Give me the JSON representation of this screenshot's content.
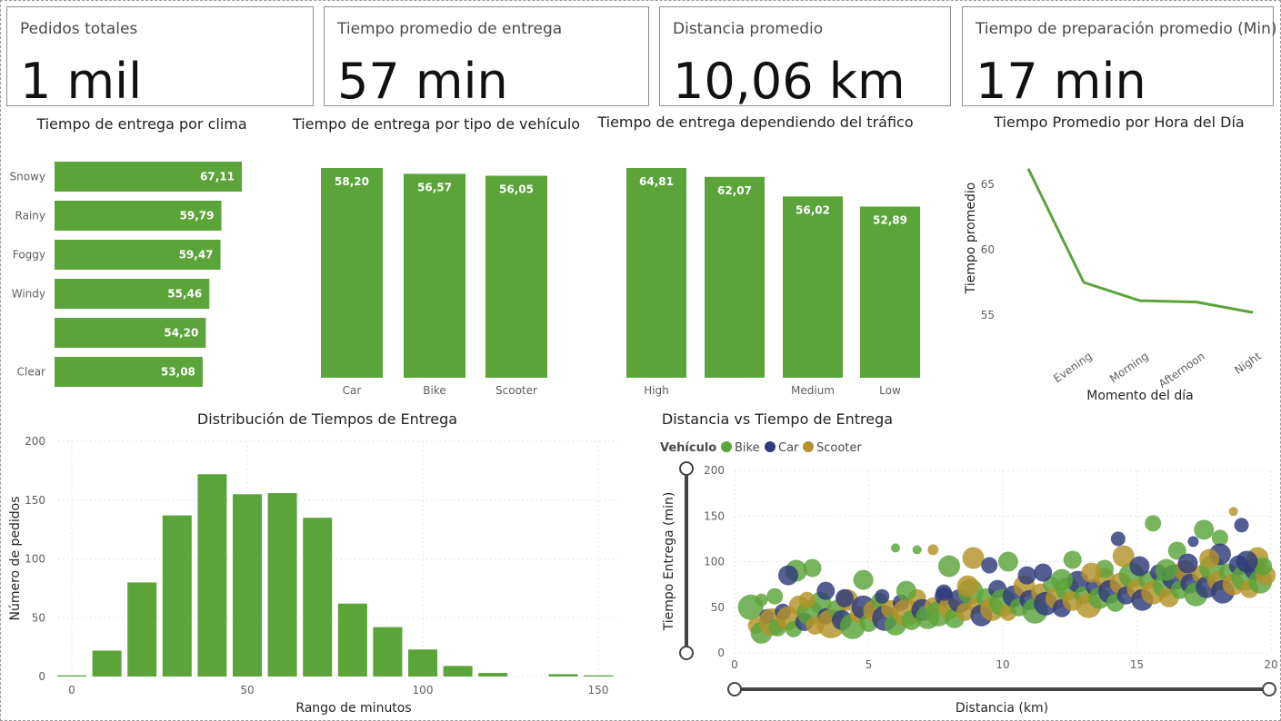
{
  "kpis": [
    {
      "label": "Pedidos totales",
      "value": "1 mil"
    },
    {
      "label": "Tiempo promedio de entrega",
      "value": "57 min"
    },
    {
      "label": "Distancia promedio",
      "value": "10,06 km"
    },
    {
      "label": "Tiempo de preparación promedio (Min)",
      "value": "17 min"
    }
  ],
  "colors": {
    "green": "#5aa43a",
    "navy": "#2e3a7a",
    "gold": "#b3922a",
    "grid": "#e6e6e6",
    "text": "#252423",
    "axis": "#605e5c"
  },
  "chart_data": [
    {
      "id": "weather",
      "type": "bar",
      "orientation": "horizontal",
      "title": "Tiempo de entrega por clima",
      "categories": [
        "Snowy",
        "Rainy",
        "Foggy",
        "Windy",
        "",
        "Clear"
      ],
      "values": [
        67.11,
        59.79,
        59.47,
        55.46,
        54.2,
        53.08
      ],
      "value_labels": [
        "67,11",
        "59,79",
        "59,47",
        "55,46",
        "54,20",
        "53,08"
      ]
    },
    {
      "id": "vehicle",
      "type": "bar",
      "title": "Tiempo de entrega por tipo de vehículo",
      "categories": [
        "Car",
        "Bike",
        "Scooter"
      ],
      "values": [
        58.2,
        56.57,
        56.05
      ],
      "value_labels": [
        "58,20",
        "56,57",
        "56,05"
      ]
    },
    {
      "id": "traffic",
      "type": "bar",
      "title": "Tiempo de entrega dependiendo del tráfico",
      "categories": [
        "High",
        "",
        "Medium",
        "Low"
      ],
      "values": [
        64.81,
        62.07,
        56.02,
        52.89
      ],
      "value_labels": [
        "64,81",
        "62,07",
        "56,02",
        "52,89"
      ]
    },
    {
      "id": "hour",
      "type": "line",
      "title": "Tiempo Promedio por Hora del Día",
      "xlabel": "Momento del día",
      "ylabel": "Tiempo promedio",
      "categories": [
        "",
        "Evening",
        "Morning",
        "Afternoon",
        "Night"
      ],
      "values": [
        66.2,
        57.5,
        56.1,
        56.0,
        55.2
      ],
      "yticks": [
        55,
        60,
        65
      ],
      "ylim": [
        53.5,
        66.5
      ]
    },
    {
      "id": "hist",
      "type": "bar",
      "title": "Distribución de Tiempos de Entrega",
      "xlabel": "Rango de minutos",
      "ylabel": "Número de pedidos",
      "bin_starts": [
        0,
        10,
        20,
        30,
        40,
        50,
        60,
        70,
        80,
        90,
        100,
        110,
        120,
        130,
        140,
        150
      ],
      "values": [
        1,
        22,
        80,
        137,
        172,
        155,
        156,
        135,
        62,
        42,
        23,
        9,
        3,
        0,
        2,
        1
      ],
      "xticks": [
        0,
        50,
        100,
        150
      ],
      "yticks": [
        0,
        50,
        100,
        150,
        200
      ],
      "ylim": [
        0,
        200
      ],
      "grid": true
    },
    {
      "id": "scatter",
      "type": "scatter",
      "title": "Distancia vs Tiempo de Entrega",
      "xlabel": "Distancia (km)",
      "ylabel": "Tiempo Entrega (min)",
      "legend_title": "Vehículo",
      "series": [
        {
          "name": "Bike",
          "color": "#5aa43a"
        },
        {
          "name": "Car",
          "color": "#2e3a7a"
        },
        {
          "name": "Scooter",
          "color": "#b3922a"
        }
      ],
      "points": [
        [
          0.6,
          50,
          0,
          14
        ],
        [
          0.8,
          30,
          2,
          9
        ],
        [
          1.0,
          22,
          0,
          12
        ],
        [
          1.2,
          40,
          1,
          8
        ],
        [
          1.4,
          34,
          2,
          15
        ],
        [
          1.6,
          28,
          0,
          10
        ],
        [
          1.8,
          45,
          1,
          9
        ],
        [
          2.0,
          38,
          2,
          13
        ],
        [
          2.2,
          26,
          0,
          9
        ],
        [
          2.4,
          52,
          2,
          11
        ],
        [
          2.6,
          34,
          1,
          10
        ],
        [
          2.8,
          44,
          0,
          14
        ],
        [
          3.0,
          30,
          2,
          10
        ],
        [
          3.2,
          55,
          0,
          12
        ],
        [
          3.4,
          40,
          1,
          9
        ],
        [
          3.6,
          32,
          2,
          16
        ],
        [
          3.8,
          48,
          0,
          10
        ],
        [
          4.0,
          36,
          1,
          11
        ],
        [
          4.2,
          58,
          2,
          12
        ],
        [
          4.4,
          29,
          0,
          14
        ],
        [
          4.6,
          42,
          2,
          9
        ],
        [
          4.8,
          50,
          1,
          13
        ],
        [
          5.0,
          33,
          0,
          10
        ],
        [
          5.2,
          46,
          2,
          12
        ],
        [
          5.4,
          57,
          0,
          9
        ],
        [
          5.6,
          38,
          1,
          14
        ],
        [
          5.8,
          48,
          2,
          10
        ],
        [
          6.0,
          31,
          0,
          12
        ],
        [
          6.2,
          55,
          1,
          9
        ],
        [
          6.4,
          44,
          2,
          15
        ],
        [
          6.6,
          36,
          0,
          11
        ],
        [
          6.8,
          60,
          2,
          10
        ],
        [
          7.0,
          47,
          1,
          12
        ],
        [
          7.2,
          39,
          0,
          13
        ],
        [
          7.4,
          52,
          2,
          9
        ],
        [
          7.6,
          43,
          0,
          14
        ],
        [
          7.8,
          62,
          1,
          10
        ],
        [
          8.0,
          49,
          2,
          12
        ],
        [
          8.2,
          38,
          0,
          11
        ],
        [
          8.4,
          57,
          1,
          13
        ],
        [
          8.6,
          45,
          2,
          10
        ],
        [
          8.8,
          67,
          0,
          14
        ],
        [
          9.0,
          52,
          2,
          9
        ],
        [
          9.2,
          41,
          1,
          12
        ],
        [
          9.4,
          60,
          0,
          11
        ],
        [
          9.6,
          48,
          2,
          13
        ],
        [
          9.8,
          70,
          1,
          10
        ],
        [
          10.0,
          55,
          0,
          15
        ],
        [
          10.2,
          44,
          2,
          9
        ],
        [
          10.4,
          62,
          1,
          12
        ],
        [
          10.6,
          50,
          0,
          10
        ],
        [
          10.8,
          73,
          2,
          12
        ],
        [
          11.0,
          58,
          1,
          11
        ],
        [
          11.2,
          46,
          0,
          14
        ],
        [
          11.4,
          66,
          2,
          10
        ],
        [
          11.6,
          54,
          1,
          13
        ],
        [
          11.8,
          75,
          0,
          9
        ],
        [
          12.0,
          60,
          2,
          12
        ],
        [
          12.2,
          49,
          1,
          10
        ],
        [
          12.4,
          70,
          0,
          13
        ],
        [
          12.6,
          57,
          2,
          11
        ],
        [
          12.8,
          78,
          1,
          12
        ],
        [
          13.0,
          63,
          0,
          10
        ],
        [
          13.2,
          52,
          2,
          14
        ],
        [
          13.4,
          72,
          1,
          9
        ],
        [
          13.6,
          60,
          0,
          12
        ],
        [
          13.8,
          82,
          2,
          11
        ],
        [
          14.0,
          67,
          1,
          13
        ],
        [
          14.2,
          55,
          0,
          10
        ],
        [
          14.4,
          76,
          2,
          12
        ],
        [
          14.6,
          63,
          1,
          10
        ],
        [
          14.8,
          85,
          0,
          14
        ],
        [
          15.0,
          70,
          2,
          11
        ],
        [
          15.2,
          58,
          1,
          12
        ],
        [
          15.4,
          80,
          0,
          10
        ],
        [
          15.6,
          66,
          2,
          13
        ],
        [
          15.8,
          88,
          1,
          9
        ],
        [
          16.0,
          73,
          0,
          12
        ],
        [
          16.2,
          61,
          2,
          11
        ],
        [
          16.4,
          83,
          1,
          14
        ],
        [
          16.6,
          69,
          0,
          10
        ],
        [
          16.8,
          90,
          2,
          12
        ],
        [
          17.0,
          76,
          1,
          11
        ],
        [
          17.2,
          64,
          0,
          13
        ],
        [
          17.4,
          86,
          2,
          10
        ],
        [
          17.6,
          72,
          1,
          12
        ],
        [
          17.8,
          93,
          0,
          14
        ],
        [
          18.0,
          79,
          2,
          11
        ],
        [
          18.2,
          67,
          1,
          13
        ],
        [
          18.4,
          88,
          0,
          10
        ],
        [
          18.6,
          75,
          2,
          12
        ],
        [
          18.8,
          96,
          1,
          11
        ],
        [
          19.0,
          82,
          0,
          14
        ],
        [
          19.2,
          70,
          2,
          10
        ],
        [
          19.4,
          92,
          1,
          12
        ],
        [
          19.6,
          78,
          0,
          13
        ],
        [
          19.8,
          85,
          2,
          11
        ],
        [
          1.5,
          62,
          0,
          9
        ],
        [
          2.3,
          90,
          0,
          12
        ],
        [
          2.9,
          93,
          0,
          10
        ],
        [
          2.0,
          85,
          1,
          11
        ],
        [
          6.0,
          115,
          0,
          5
        ],
        [
          6.8,
          113,
          0,
          5
        ],
        [
          7.4,
          113,
          2,
          6
        ],
        [
          4.8,
          80,
          0,
          11
        ],
        [
          8.0,
          95,
          0,
          12
        ],
        [
          8.9,
          104,
          2,
          12
        ],
        [
          10.2,
          100,
          0,
          11
        ],
        [
          12.6,
          102,
          0,
          10
        ],
        [
          14.5,
          106,
          2,
          12
        ],
        [
          15.6,
          142,
          0,
          9
        ],
        [
          16.5,
          112,
          0,
          10
        ],
        [
          17.5,
          135,
          0,
          11
        ],
        [
          18.9,
          140,
          1,
          8
        ],
        [
          18.1,
          126,
          0,
          9
        ],
        [
          18.6,
          155,
          2,
          5
        ],
        [
          17.1,
          122,
          1,
          6
        ],
        [
          14.3,
          125,
          1,
          8
        ],
        [
          9.5,
          96,
          1,
          9
        ],
        [
          13.8,
          92,
          0,
          10
        ],
        [
          16.9,
          98,
          1,
          11
        ],
        [
          19.5,
          104,
          2,
          12
        ],
        [
          11.5,
          88,
          1,
          10
        ],
        [
          5.5,
          62,
          1,
          8
        ],
        [
          7.8,
          66,
          1,
          9
        ],
        [
          3.4,
          68,
          1,
          10
        ],
        [
          12.2,
          80,
          0,
          12
        ],
        [
          15.1,
          95,
          1,
          11
        ],
        [
          18.1,
          108,
          1,
          12
        ],
        [
          19.7,
          95,
          0,
          10
        ],
        [
          1.0,
          58,
          0,
          7
        ],
        [
          2.7,
          58,
          2,
          9
        ],
        [
          4.1,
          60,
          1,
          10
        ],
        [
          6.4,
          68,
          0,
          11
        ],
        [
          8.7,
          73,
          2,
          12
        ],
        [
          10.9,
          85,
          1,
          10
        ],
        [
          13.3,
          88,
          2,
          11
        ],
        [
          16.1,
          91,
          0,
          12
        ],
        [
          17.7,
          103,
          2,
          11
        ],
        [
          19.1,
          100,
          1,
          12
        ]
      ],
      "xticks": [
        0,
        5,
        10,
        15,
        20
      ],
      "yticks": [
        0,
        50,
        100,
        150,
        200
      ],
      "xlim": [
        0,
        20
      ],
      "ylim": [
        0,
        200
      ]
    }
  ]
}
